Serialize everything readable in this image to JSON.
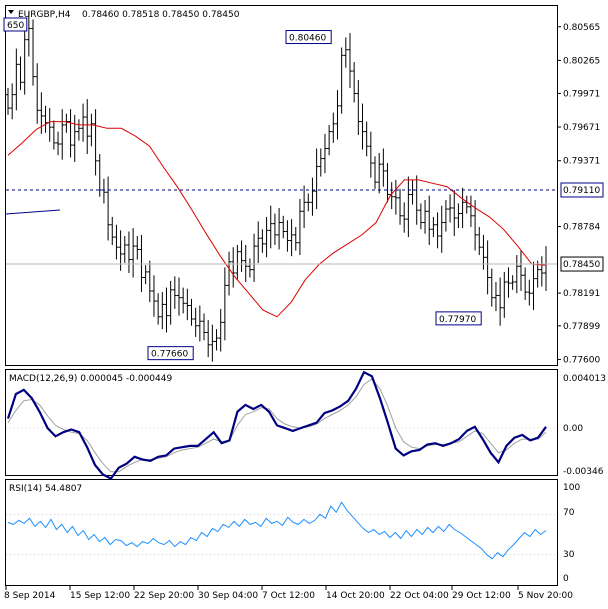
{
  "colors": {
    "background": "#ffffff",
    "price_bars": "#000000",
    "moving_average": "#dd0000",
    "level_line": "#00008b",
    "macd_main": "#000080",
    "macd_signal": "#a0a0a0",
    "rsi_line": "#1e90ff"
  },
  "chart_data": [
    {
      "type": "ohlc",
      "title": "EURGBP,H4",
      "ohlc_text": "0.78460 0.78518 0.78450 0.78450",
      "ylim": [
        0.7755,
        0.8075
      ],
      "x_labels": [
        "8 Sep 2014",
        "15 Sep 12:00",
        "22 Sep 20:00",
        "30 Sep 04:00",
        "7 Oct 12:00",
        "14 Oct 20:00",
        "22 Oct 04:00",
        "29 Oct 12:00",
        "5 Nov 20:00"
      ],
      "y_ticks": [
        "0.80565",
        "0.80265",
        "0.79971",
        "0.79671",
        "0.79371",
        "0.78784",
        "0.78191",
        "0.77899",
        "0.77600"
      ],
      "price_box": "0.78450",
      "level_box": "0.79110",
      "level_value": 0.7911,
      "current_price": 0.7845,
      "annotations": [
        {
          "label": "650",
          "value": 0.8065
        },
        {
          "label": "0.80460",
          "value": 0.8046
        },
        {
          "label": "0.77660",
          "value": 0.7766
        },
        {
          "label": "0.77970",
          "value": 0.7797
        }
      ],
      "series": [
        {
          "name": "close",
          "values": [
            0.7984,
            0.7996,
            0.8023,
            0.8007,
            0.8045,
            0.8055,
            0.8012,
            0.7982,
            0.7977,
            0.7971,
            0.7967,
            0.7953,
            0.7952,
            0.7969,
            0.7972,
            0.7951,
            0.7963,
            0.7966,
            0.7976,
            0.7959,
            0.797,
            0.7937,
            0.7911,
            0.7909,
            0.788,
            0.7869,
            0.786,
            0.7854,
            0.7862,
            0.7849,
            0.7861,
            0.7858,
            0.7833,
            0.7838,
            0.7821,
            0.7812,
            0.7798,
            0.7809,
            0.7799,
            0.7822,
            0.7817,
            0.7815,
            0.781,
            0.7808,
            0.7796,
            0.779,
            0.7794,
            0.7784,
            0.7773,
            0.7776,
            0.7779,
            0.7793,
            0.7826,
            0.7847,
            0.7837,
            0.7856,
            0.7848,
            0.7843,
            0.784,
            0.7861,
            0.7868,
            0.7863,
            0.7875,
            0.7881,
            0.7871,
            0.7882,
            0.7874,
            0.7866,
            0.7871,
            0.7864,
            0.7892,
            0.79,
            0.79,
            0.791,
            0.7932,
            0.7939,
            0.7948,
            0.7963,
            0.797,
            0.7986,
            0.8031,
            0.8036,
            0.8017,
            0.7997,
            0.7972,
            0.7963,
            0.795,
            0.7935,
            0.7918,
            0.7934,
            0.7928,
            0.7907,
            0.7905,
            0.7904,
            0.7888,
            0.7885,
            0.7907,
            0.7911,
            0.7893,
            0.7882,
            0.7892,
            0.7876,
            0.788,
            0.787,
            0.7882,
            0.7894,
            0.7895,
            0.7886,
            0.789,
            0.79,
            0.7896,
            0.7888,
            0.7871,
            0.786,
            0.7851,
            0.7833,
            0.7815,
            0.7817,
            0.7806,
            0.7829,
            0.7828,
            0.7829,
            0.7843,
            0.7835,
            0.782,
            0.7819,
            0.7832,
            0.784,
            0.7837,
            0.7845
          ]
        },
        {
          "name": "MA",
          "values": [
            0.7942,
            0.7953,
            0.7965,
            0.7972,
            0.7972,
            0.7969,
            0.7969,
            0.7966,
            0.7966,
            0.7959,
            0.795,
            0.7931,
            0.7913,
            0.7893,
            0.7872,
            0.7852,
            0.7834,
            0.7819,
            0.7804,
            0.7798,
            0.7811,
            0.7831,
            0.7845,
            0.7855,
            0.7863,
            0.7871,
            0.7882,
            0.7906,
            0.792,
            0.792,
            0.7917,
            0.7914,
            0.7904,
            0.7895,
            0.7887,
            0.7876,
            0.7861,
            0.7845,
            0.7844
          ]
        }
      ]
    },
    {
      "type": "line",
      "title": "MACD(12,26,9) 0.000045 -0.000449",
      "y_ticks": [
        "0.004013",
        "0.00",
        "-0.00346"
      ],
      "series": [
        {
          "name": "main",
          "values": [
            0.0006,
            0.0024,
            0.0027,
            0.0021,
            0.0011,
            -0.0001,
            -0.0007,
            -0.0004,
            -0.0002,
            -0.0004,
            -0.0015,
            -0.0028,
            -0.0035,
            -0.0038,
            -0.003,
            -0.0027,
            -0.0022,
            -0.0024,
            -0.0025,
            -0.0022,
            -0.0021,
            -0.0016,
            -0.0015,
            -0.0014,
            -0.0014,
            -0.0009,
            -0.0004,
            -0.0012,
            -0.001,
            0.0011,
            0.0016,
            0.0013,
            0.0016,
            0.0011,
            0.0001,
            -0.0001,
            -0.0003,
            -0.0001,
            0.0001,
            0.0003,
            0.001,
            0.0012,
            0.0015,
            0.0019,
            0.0028,
            0.004,
            0.0037,
            0.0021,
            0.0003,
            -0.0016,
            -0.0021,
            -0.0018,
            -0.0017,
            -0.0013,
            -0.0012,
            -0.0014,
            -0.0012,
            -0.0009,
            -0.0003,
            0.0,
            -0.0009,
            -0.0019,
            -0.0026,
            -0.0014,
            -0.0008,
            -0.0006,
            -0.001,
            -0.0008,
            0.0
          ]
        },
        {
          "name": "signal",
          "values": [
            0.0003,
            0.0012,
            0.0019,
            0.002,
            0.0016,
            0.0008,
            0.0001,
            -0.0002,
            -0.0004,
            -0.0005,
            -0.001,
            -0.0019,
            -0.0027,
            -0.0033,
            -0.0033,
            -0.0029,
            -0.0026,
            -0.0024,
            -0.0024,
            -0.0023,
            -0.0022,
            -0.0019,
            -0.0017,
            -0.0016,
            -0.0015,
            -0.0012,
            -0.0009,
            -0.0011,
            -0.001,
            0.0001,
            0.0009,
            0.0011,
            0.0014,
            0.0013,
            0.0006,
            0.0002,
            0.0,
            -0.0001,
            0.0,
            0.0002,
            0.0006,
            0.0009,
            0.0012,
            0.0016,
            0.0022,
            0.0031,
            0.0035,
            0.0028,
            0.0015,
            -0.0001,
            -0.0011,
            -0.0015,
            -0.0016,
            -0.0014,
            -0.0013,
            -0.0013,
            -0.0012,
            -0.0011,
            -0.0007,
            -0.0003,
            -0.0005,
            -0.0012,
            -0.0019,
            -0.0017,
            -0.0012,
            -0.0009,
            -0.0009,
            -0.0009,
            -0.0004
          ]
        }
      ]
    },
    {
      "type": "line",
      "title": "RSI(14) 54.4807",
      "y_ticks": [
        "100",
        "70",
        "30",
        "0"
      ],
      "levels": [
        70,
        30
      ],
      "series": [
        {
          "name": "RSI",
          "values": [
            62,
            60,
            64,
            61,
            66,
            58,
            63,
            57,
            65,
            55,
            60,
            52,
            58,
            49,
            54,
            45,
            50,
            43,
            47,
            40,
            45,
            44,
            39,
            42,
            38,
            43,
            41,
            46,
            42,
            40,
            44,
            38,
            43,
            40,
            47,
            44,
            52,
            48,
            56,
            53,
            60,
            57,
            63,
            58,
            65,
            60,
            62,
            58,
            66,
            61,
            63,
            59,
            67,
            62,
            60,
            65,
            61,
            64,
            70,
            66,
            78,
            72,
            82,
            74,
            68,
            62,
            56,
            52,
            55,
            50,
            53,
            47,
            52,
            46,
            54,
            48,
            55,
            50,
            57,
            52,
            58,
            53,
            60,
            55,
            52,
            48,
            44,
            40,
            36,
            30,
            26,
            32,
            28,
            35,
            40,
            46,
            52,
            48,
            55,
            50,
            54
          ]
        }
      ]
    }
  ]
}
